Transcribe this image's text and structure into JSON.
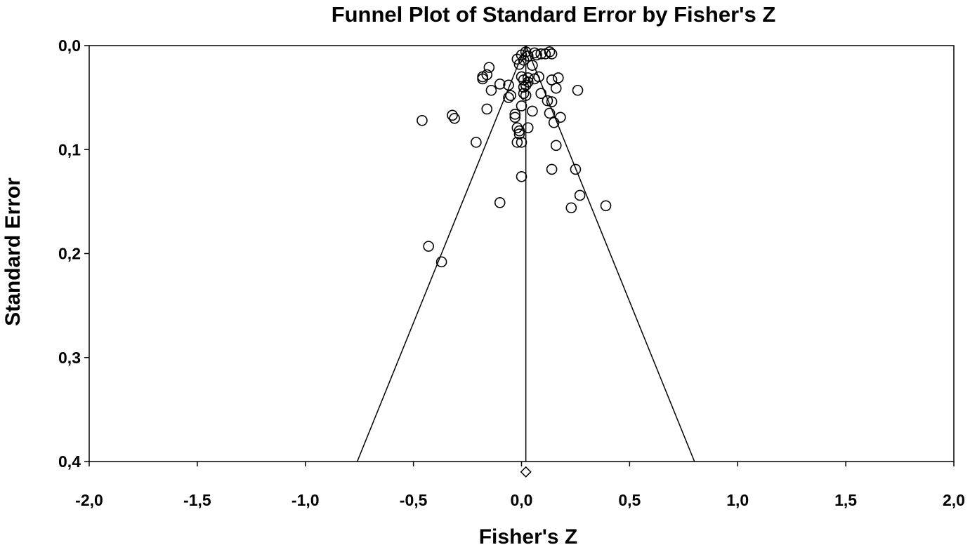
{
  "chart_data": {
    "type": "scatter",
    "title": "Funnel Plot of Standard Error by Fisher's Z",
    "xlabel": "Fisher's Z",
    "ylabel": "Standard Error",
    "xlim": [
      -2.0,
      2.0
    ],
    "ylim": [
      0.0,
      0.4
    ],
    "y_inverted": true,
    "grid": false,
    "x_ticks": [
      -2.0,
      -1.5,
      -1.0,
      -0.5,
      0.0,
      0.5,
      1.0,
      1.5,
      2.0
    ],
    "x_tick_labels": [
      "-2,0",
      "-1,5",
      "-1,0",
      "-0,5",
      "0,0",
      "0,5",
      "1,0",
      "1,5",
      "2,0"
    ],
    "y_ticks": [
      0.0,
      0.1,
      0.2,
      0.3,
      0.4
    ],
    "y_tick_labels": [
      "0,0",
      "0,1",
      "0,2",
      "0,3",
      "0,4"
    ],
    "mean_effect": 0.02,
    "funnel": {
      "apex": [
        0.02,
        0.0
      ],
      "base_left": [
        -0.76,
        0.4
      ],
      "base_right": [
        0.8,
        0.4
      ]
    },
    "summary_marker": {
      "shape": "diamond",
      "x": 0.02,
      "y": 0.41
    },
    "points": [
      {
        "x": 0.02,
        "y": 0.006
      },
      {
        "x": 0.0,
        "y": 0.009
      },
      {
        "x": 0.03,
        "y": 0.01
      },
      {
        "x": 0.06,
        "y": 0.007
      },
      {
        "x": 0.07,
        "y": 0.009
      },
      {
        "x": 0.09,
        "y": 0.008
      },
      {
        "x": 0.11,
        "y": 0.008
      },
      {
        "x": 0.13,
        "y": 0.006
      },
      {
        "x": 0.14,
        "y": 0.008
      },
      {
        "x": -0.02,
        "y": 0.013
      },
      {
        "x": 0.01,
        "y": 0.014
      },
      {
        "x": -0.01,
        "y": 0.018
      },
      {
        "x": 0.05,
        "y": 0.019
      },
      {
        "x": -0.15,
        "y": 0.021
      },
      {
        "x": -0.16,
        "y": 0.028
      },
      {
        "x": -0.18,
        "y": 0.03
      },
      {
        "x": -0.18,
        "y": 0.032
      },
      {
        "x": 0.0,
        "y": 0.03
      },
      {
        "x": 0.03,
        "y": 0.031
      },
      {
        "x": 0.06,
        "y": 0.032
      },
      {
        "x": 0.08,
        "y": 0.03
      },
      {
        "x": 0.01,
        "y": 0.033
      },
      {
        "x": 0.03,
        "y": 0.035
      },
      {
        "x": 0.14,
        "y": 0.033
      },
      {
        "x": 0.17,
        "y": 0.031
      },
      {
        "x": 0.02,
        "y": 0.038
      },
      {
        "x": -0.1,
        "y": 0.037
      },
      {
        "x": -0.06,
        "y": 0.038
      },
      {
        "x": 0.01,
        "y": 0.04
      },
      {
        "x": -0.14,
        "y": 0.043
      },
      {
        "x": 0.16,
        "y": 0.041
      },
      {
        "x": 0.26,
        "y": 0.043
      },
      {
        "x": 0.09,
        "y": 0.046
      },
      {
        "x": 0.01,
        "y": 0.046
      },
      {
        "x": 0.02,
        "y": 0.048
      },
      {
        "x": -0.05,
        "y": 0.048
      },
      {
        "x": -0.06,
        "y": 0.05
      },
      {
        "x": 0.12,
        "y": 0.053
      },
      {
        "x": 0.14,
        "y": 0.054
      },
      {
        "x": 0.0,
        "y": 0.058
      },
      {
        "x": -0.16,
        "y": 0.061
      },
      {
        "x": 0.05,
        "y": 0.063
      },
      {
        "x": -0.03,
        "y": 0.066
      },
      {
        "x": 0.13,
        "y": 0.065
      },
      {
        "x": -0.03,
        "y": 0.069
      },
      {
        "x": 0.18,
        "y": 0.069
      },
      {
        "x": -0.32,
        "y": 0.067
      },
      {
        "x": -0.31,
        "y": 0.07
      },
      {
        "x": -0.46,
        "y": 0.072
      },
      {
        "x": 0.15,
        "y": 0.074
      },
      {
        "x": -0.02,
        "y": 0.079
      },
      {
        "x": 0.03,
        "y": 0.079
      },
      {
        "x": -0.01,
        "y": 0.082
      },
      {
        "x": -0.01,
        "y": 0.085
      },
      {
        "x": -0.21,
        "y": 0.093
      },
      {
        "x": -0.02,
        "y": 0.093
      },
      {
        "x": 0.0,
        "y": 0.093
      },
      {
        "x": 0.16,
        "y": 0.096
      },
      {
        "x": 0.14,
        "y": 0.119
      },
      {
        "x": 0.25,
        "y": 0.119
      },
      {
        "x": 0.0,
        "y": 0.126
      },
      {
        "x": 0.27,
        "y": 0.144
      },
      {
        "x": -0.1,
        "y": 0.151
      },
      {
        "x": 0.39,
        "y": 0.154
      },
      {
        "x": 0.23,
        "y": 0.156
      },
      {
        "x": -0.43,
        "y": 0.193
      },
      {
        "x": -0.37,
        "y": 0.208
      }
    ]
  }
}
